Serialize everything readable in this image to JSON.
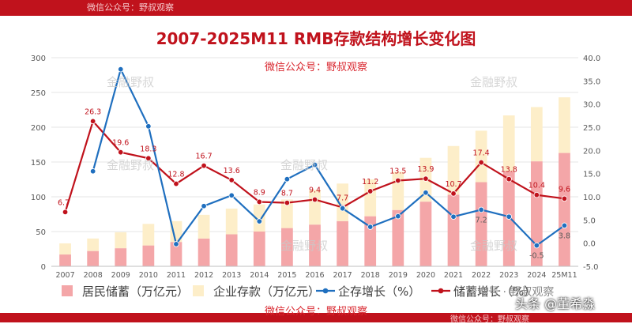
{
  "header": {
    "watermark": "微信公众号：野叔观察"
  },
  "footer": {
    "watermark": "微信公众号：野叔观察",
    "bottom_watermark": "微信公众号：野叔观察",
    "credit": "头条 @董希淼"
  },
  "watermarks": {
    "brand": "金融野叔"
  },
  "legend_tail": "公众号 · 野叔观察",
  "colors": {
    "household": "#f4a6a8",
    "corporate": "#fdeec9",
    "corp_growth": "#1f6fbf",
    "savings_growth": "#c0121c"
  },
  "chart_data": {
    "type": "bar+line",
    "title": "2007-2025M11 RMB存款结构增长变化图",
    "subtitle": "微信公众号：野叔观察",
    "categories": [
      "2007",
      "2008",
      "2009",
      "2010",
      "2011",
      "2012",
      "2013",
      "2014",
      "2015",
      "2016",
      "2017",
      "2018",
      "2019",
      "2020",
      "2021",
      "2022",
      "2023",
      "2024",
      "25M11"
    ],
    "y_left": {
      "min": 0,
      "max": 300,
      "ticks": [
        "0",
        "50",
        "100",
        "150",
        "200",
        "250",
        "300"
      ]
    },
    "y_right": {
      "min": -5,
      "max": 40,
      "ticks": [
        "-5.0",
        "0.0",
        "5.0",
        "10.0",
        "15.0",
        "20.0",
        "25.0",
        "30.0",
        "35.0",
        "40.0"
      ]
    },
    "series": [
      {
        "name": "居民储蓄（万亿元）",
        "type": "bar",
        "axis": "left",
        "values": [
          17,
          22,
          26,
          30,
          35,
          40,
          46,
          50,
          55,
          60,
          65,
          72,
          81,
          93,
          103,
          121,
          137,
          151,
          163
        ]
      },
      {
        "name": "企业存款（万亿元）",
        "type": "bar",
        "axis": "left",
        "values": [
          16,
          18,
          23,
          31,
          30,
          34,
          37,
          39,
          41,
          50,
          54,
          53,
          55,
          63,
          70,
          74,
          80,
          78,
          80
        ]
      },
      {
        "name": "企存增长（%）",
        "type": "line",
        "axis": "right",
        "values": [
          null,
          15.5,
          37.5,
          25.2,
          -0.2,
          8.0,
          10.3,
          4.7,
          13.8,
          16.9,
          7.5,
          3.5,
          5.8,
          10.9,
          5.7,
          7.2,
          5.7,
          -0.5,
          3.8
        ],
        "labels": [
          "",
          "",
          "",
          "",
          "",
          "",
          "",
          "",
          "",
          "",
          "",
          "",
          "",
          "",
          "",
          "7.2",
          "",
          "-0.5",
          "3.8"
        ]
      },
      {
        "name": "储蓄增长（%）",
        "type": "line",
        "axis": "right",
        "values": [
          6.7,
          26.3,
          19.6,
          18.3,
          12.8,
          16.7,
          13.6,
          8.9,
          8.7,
          9.4,
          7.7,
          11.2,
          13.5,
          13.9,
          10.7,
          17.4,
          13.8,
          10.4,
          9.6
        ],
        "labels": [
          "6.7",
          "26.3",
          "19.6",
          "18.3",
          "12.8",
          "16.7",
          "13.6",
          "8.9",
          "8.7",
          "9.4",
          "7.7",
          "11.2",
          "13.5",
          "13.9",
          "10.7",
          "17.4",
          "13.8",
          "10.4",
          "9.6"
        ]
      }
    ],
    "legend": [
      "居民储蓄（万亿元）",
      "企业存款（万亿元）",
      "企存增长（%）",
      "储蓄增长（%）"
    ]
  }
}
